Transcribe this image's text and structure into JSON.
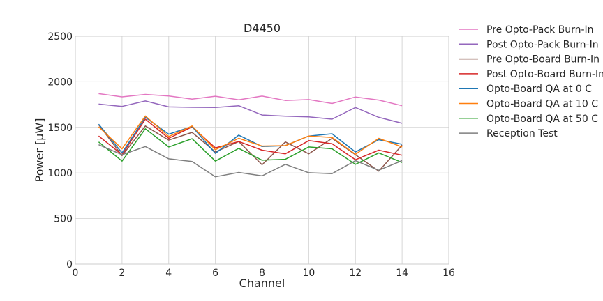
{
  "chart_data": {
    "type": "line",
    "title": "D4450",
    "xlabel": "Channel",
    "ylabel": "Power [μW]",
    "xlim": [
      0,
      16
    ],
    "ylim": [
      0,
      2500
    ],
    "xticks": [
      0,
      2,
      4,
      6,
      8,
      10,
      12,
      14,
      16
    ],
    "yticks": [
      0,
      500,
      1000,
      1500,
      2000,
      2500
    ],
    "grid": true,
    "legend": "outside-right",
    "x": [
      1,
      2,
      3,
      4,
      5,
      6,
      7,
      8,
      9,
      10,
      11,
      12,
      13,
      14
    ],
    "series": [
      {
        "name": "Pre Opto-Pack Burn-In",
        "color": "#e377c2",
        "values": [
          1870,
          1835,
          1862,
          1845,
          1810,
          1842,
          1802,
          1843,
          1795,
          1805,
          1762,
          1833,
          1800,
          1738
        ]
      },
      {
        "name": "Post Opto-Pack Burn-In",
        "color": "#9467bd",
        "values": [
          1755,
          1730,
          1790,
          1725,
          1720,
          1718,
          1738,
          1635,
          1622,
          1615,
          1590,
          1718,
          1610,
          1545
        ]
      },
      {
        "name": "Pre Opto-Board Burn-In",
        "color": "#8c564b",
        "values": [
          1530,
          1190,
          1515,
          1360,
          1445,
          1230,
          1345,
          1090,
          1340,
          1210,
          1380,
          1200,
          1020,
          1305
        ]
      },
      {
        "name": "Post Opto-Board Burn-In",
        "color": "#d62728",
        "values": [
          1405,
          1200,
          1590,
          1380,
          1505,
          1275,
          1345,
          1250,
          1210,
          1355,
          1320,
          1145,
          1250,
          1195
        ]
      },
      {
        "name": "Opto-Board QA at 0 C",
        "color": "#1f77b4",
        "values": [
          1535,
          1220,
          1610,
          1425,
          1510,
          1215,
          1415,
          1290,
          1300,
          1405,
          1430,
          1230,
          1365,
          1315
        ]
      },
      {
        "name": "Opto-Board QA at 10 C",
        "color": "#ff7f0e",
        "values": [
          1505,
          1265,
          1625,
          1400,
          1515,
          1255,
          1380,
          1295,
          1300,
          1405,
          1390,
          1205,
          1380,
          1285
        ]
      },
      {
        "name": "Opto-Board QA at 50 C",
        "color": "#2ca02c",
        "values": [
          1340,
          1130,
          1485,
          1285,
          1375,
          1130,
          1270,
          1140,
          1150,
          1285,
          1265,
          1095,
          1220,
          1115
        ]
      },
      {
        "name": "Reception Test",
        "color": "#7f7f7f",
        "values": [
          1310,
          1200,
          1290,
          1155,
          1125,
          958,
          1005,
          968,
          1095,
          1002,
          992,
          1135,
          1030,
          1135
        ]
      }
    ]
  }
}
